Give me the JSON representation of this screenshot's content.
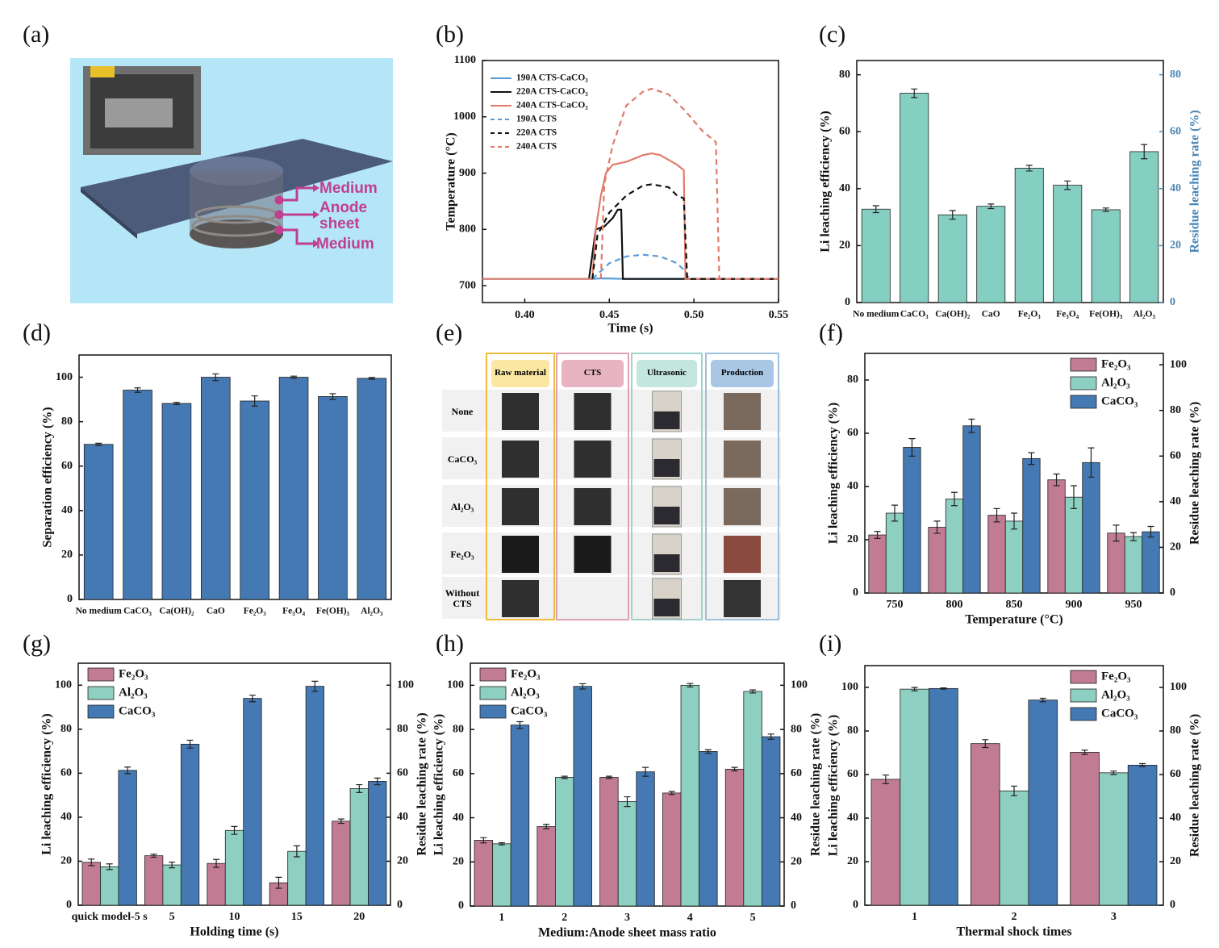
{
  "panel_a": {
    "panel_label": "(a)",
    "labels": [
      "Medium",
      "Anode sheet",
      "Medium"
    ]
  },
  "panel_e": {
    "panel_label": "(e)",
    "columns": [
      "Raw material",
      "CTS",
      "Ultrasonic",
      "Production"
    ],
    "rows": [
      "None",
      "CaCO₃",
      "Al₂O₃",
      "Fe₂O₃",
      "Without CTS"
    ]
  },
  "chart_data": [
    {
      "type": "line",
      "panel_label": "(b)",
      "xlabel": "Time (s)",
      "ylabel": "Temperature (°C)",
      "xlim": [
        0.375,
        0.55
      ],
      "xticks": [
        {
          "value": 0.4,
          "label": "0.40"
        },
        0.45,
        {
          "value": 0.5,
          "label": "0.50"
        },
        0.55
      ],
      "ylim": [
        670,
        1100
      ],
      "yticks": [
        700,
        800,
        900,
        1000,
        1100
      ],
      "legend": "upper left",
      "series": [
        {
          "name": "190A CTS-CaCO₃",
          "color": "#5b9bd5",
          "dash": false,
          "x": [
            0.375,
            0.44,
            0.445,
            0.46,
            0.55
          ],
          "values": [
            712,
            712,
            713,
            712,
            712
          ]
        },
        {
          "name": "220A CTS-CaCO₃",
          "color": "#111111",
          "dash": false,
          "x": [
            0.438,
            0.442,
            0.447,
            0.452,
            0.455,
            0.457,
            0.458,
            0.55
          ],
          "values": [
            712,
            800,
            805,
            820,
            835,
            835,
            712,
            712
          ]
        },
        {
          "name": "240A CTS-CaCO₃",
          "color": "#e07b6a",
          "dash": false,
          "x": [
            0.375,
            0.44,
            0.442,
            0.445,
            0.448,
            0.452,
            0.46,
            0.47,
            0.475,
            0.48,
            0.49,
            0.494,
            0.495,
            0.55
          ],
          "values": [
            712,
            712,
            800,
            860,
            900,
            915,
            920,
            932,
            935,
            932,
            915,
            905,
            712,
            712
          ]
        },
        {
          "name": "190A CTS",
          "color": "#5b9bd5",
          "dash": true,
          "x": [
            0.44,
            0.45,
            0.46,
            0.47,
            0.48,
            0.49,
            0.495,
            0.497
          ],
          "values": [
            712,
            740,
            752,
            755,
            752,
            740,
            725,
            712
          ]
        },
        {
          "name": "220A CTS",
          "color": "#111111",
          "dash": true,
          "x": [
            0.44,
            0.443,
            0.45,
            0.46,
            0.47,
            0.475,
            0.485,
            0.49,
            0.494,
            0.496,
            0.55
          ],
          "values": [
            712,
            790,
            830,
            860,
            878,
            880,
            875,
            860,
            855,
            712,
            712
          ]
        },
        {
          "name": "240A CTS",
          "color": "#e07b6a",
          "dash": true,
          "x": [
            0.445,
            0.447,
            0.452,
            0.46,
            0.47,
            0.475,
            0.485,
            0.495,
            0.505,
            0.513,
            0.515,
            0.55
          ],
          "values": [
            712,
            880,
            950,
            1020,
            1045,
            1050,
            1040,
            1010,
            975,
            955,
            712,
            712
          ]
        }
      ]
    },
    {
      "type": "bar",
      "panel_label": "(c)",
      "ylabel": "Li  leaching efficiency (%)",
      "y2label": "Residue leaching rate (%)",
      "y2color": "#4a86b5",
      "categories": [
        "No medium",
        "CaCO₃",
        "Ca(OH)₂",
        "CaO",
        "Fe₂O₃",
        "Fe₃O₄",
        "Fe(OH)₃",
        "Al₂O₃"
      ],
      "color": "#84cfc1",
      "values": [
        32.8,
        73.5,
        30.8,
        33.8,
        47.2,
        41.2,
        32.6,
        53
      ],
      "errors": [
        1.2,
        1.5,
        1.5,
        0.8,
        1,
        1.5,
        0.6,
        2.5
      ],
      "ylim": [
        0,
        85
      ],
      "yticks": [
        0,
        20,
        40,
        60,
        80
      ],
      "y2lim": [
        0,
        85
      ],
      "y2ticks": [
        0,
        20,
        40,
        60,
        80
      ]
    },
    {
      "type": "bar",
      "panel_label": "(d)",
      "ylabel": "Separation efficiency (%)",
      "categories": [
        "No medium",
        "CaCO₃",
        "Ca(OH)₂",
        "CaO",
        "Fe₂O₃",
        "Fe₃O₄",
        "Fe(OH)₃",
        "Al₂O₃"
      ],
      "color": "#4479b3",
      "values": [
        69.8,
        94.2,
        88.2,
        100,
        89.3,
        100,
        91.3,
        99.5
      ],
      "errors": [
        0.5,
        1,
        0.5,
        1.5,
        2.3,
        0.5,
        1.3,
        0.4
      ],
      "ylim": [
        0,
        110
      ],
      "yticks": [
        0,
        20,
        40,
        60,
        80,
        100
      ]
    },
    {
      "type": "bar",
      "panel_label": "(f)",
      "xlabel": "Temperature (°C)",
      "ylabel": "Li  leaching efficiency (%)",
      "y2label": "Residue  leaching rate (%)",
      "categories": [
        "750",
        "800",
        "850",
        "900",
        "950"
      ],
      "legend": "upper right",
      "series": [
        {
          "name": "Fe₂O₃",
          "color": "#c17b93",
          "values": [
            21.8,
            24.7,
            29.2,
            42.5,
            22.5
          ],
          "errors": [
            1.3,
            2.3,
            2.5,
            2.2,
            3
          ]
        },
        {
          "name": "Al₂O₃",
          "color": "#8dcfc0",
          "values": [
            30,
            35.3,
            27,
            36,
            21.2
          ],
          "errors": [
            3,
            2.5,
            3,
            4.3,
            1.5
          ]
        },
        {
          "name": "CaCO₃",
          "color": "#4479b3",
          "values": [
            54.7,
            62.8,
            50.5,
            49,
            23
          ],
          "errors": [
            3.3,
            2.5,
            2.2,
            5.5,
            2
          ]
        }
      ],
      "ylim": [
        0,
        90
      ],
      "yticks": [
        0,
        20,
        40,
        60,
        80
      ],
      "y2lim": [
        0,
        105
      ],
      "y2ticks": [
        0,
        20,
        40,
        60,
        80,
        100
      ]
    },
    {
      "type": "bar",
      "panel_label": "(g)",
      "xlabel": "Holding time (s)",
      "ylabel": "Li  leaching efficiency (%)",
      "y2label": "Residue  leaching rate (%)",
      "categories": [
        "quick model-5 s",
        "5",
        "10",
        "15",
        "20"
      ],
      "legend": "upper left",
      "series": [
        {
          "name": "Fe₂O₃",
          "color": "#c17b93",
          "values": [
            19.5,
            22.5,
            19,
            10.2,
            38.2
          ],
          "errors": [
            1.5,
            0.7,
            1.8,
            2.5,
            1
          ]
        },
        {
          "name": "Al₂O₃",
          "color": "#8dcfc0",
          "values": [
            17.5,
            18.3,
            34,
            24.5,
            53
          ],
          "errors": [
            1.3,
            1.3,
            1.8,
            2.5,
            1.8
          ]
        },
        {
          "name": "CaCO₃",
          "color": "#4479b3",
          "values": [
            61.3,
            73.2,
            94,
            99.5,
            56.3
          ],
          "errors": [
            1.5,
            1.8,
            1.5,
            2.3,
            1.5
          ]
        }
      ],
      "ylim": [
        0,
        110
      ],
      "yticks": [
        0,
        20,
        40,
        60,
        80,
        100
      ],
      "y2lim": [
        0,
        110
      ],
      "y2ticks": [
        0,
        20,
        40,
        60,
        80,
        100
      ]
    },
    {
      "type": "bar",
      "panel_label": "(h)",
      "xlabel": "Medium:Anode sheet mass ratio",
      "ylabel": "Li  leaching efficiency (%)",
      "y2label": "Residue  leaching rate (%)",
      "categories": [
        "1",
        "2",
        "3",
        "4",
        "5"
      ],
      "legend": "upper left",
      "series": [
        {
          "name": "Fe₂O₃",
          "color": "#c17b93",
          "values": [
            29.8,
            36,
            58.3,
            51.2,
            62
          ],
          "errors": [
            1.2,
            1,
            0.5,
            0.7,
            0.8
          ]
        },
        {
          "name": "Al₂O₃",
          "color": "#8dcfc0",
          "values": [
            28.2,
            58.3,
            47.3,
            100,
            97.2
          ],
          "errors": [
            0.5,
            0.5,
            2.2,
            0.8,
            0.7
          ]
        },
        {
          "name": "CaCO₃",
          "color": "#4479b3",
          "values": [
            82,
            99.5,
            60.8,
            70,
            76.7
          ],
          "errors": [
            1.5,
            1.2,
            2,
            0.8,
            1.2
          ]
        }
      ],
      "ylim": [
        0,
        110
      ],
      "yticks": [
        0,
        20,
        40,
        60,
        80,
        100
      ],
      "y2lim": [
        0,
        110
      ],
      "y2ticks": [
        0,
        20,
        40,
        60,
        80,
        100
      ]
    },
    {
      "type": "bar",
      "panel_label": "(i)",
      "xlabel": "Thermal shock times",
      "ylabel": "Li  leaching efficiency (%)",
      "y2label": "Residue  leaching rate (%)",
      "categories": [
        "1",
        "2",
        "3"
      ],
      "legend": "upper right",
      "series": [
        {
          "name": "Fe₂O₃",
          "color": "#c17b93",
          "values": [
            57.8,
            74.2,
            70.2
          ],
          "errors": [
            2,
            1.8,
            1
          ]
        },
        {
          "name": "Al₂O₃",
          "color": "#8dcfc0",
          "values": [
            99.2,
            52.5,
            60.8
          ],
          "errors": [
            0.8,
            2.2,
            0.8
          ]
        },
        {
          "name": "CaCO₃",
          "color": "#4479b3",
          "values": [
            99.5,
            94.2,
            64.3
          ],
          "errors": [
            0.3,
            0.8,
            0.7
          ]
        }
      ],
      "ylim": [
        0,
        110
      ],
      "yticks": [
        0,
        20,
        40,
        60,
        80,
        100
      ],
      "y2lim": [
        0,
        110
      ],
      "y2ticks": [
        0,
        20,
        40,
        60,
        80,
        100
      ]
    }
  ]
}
